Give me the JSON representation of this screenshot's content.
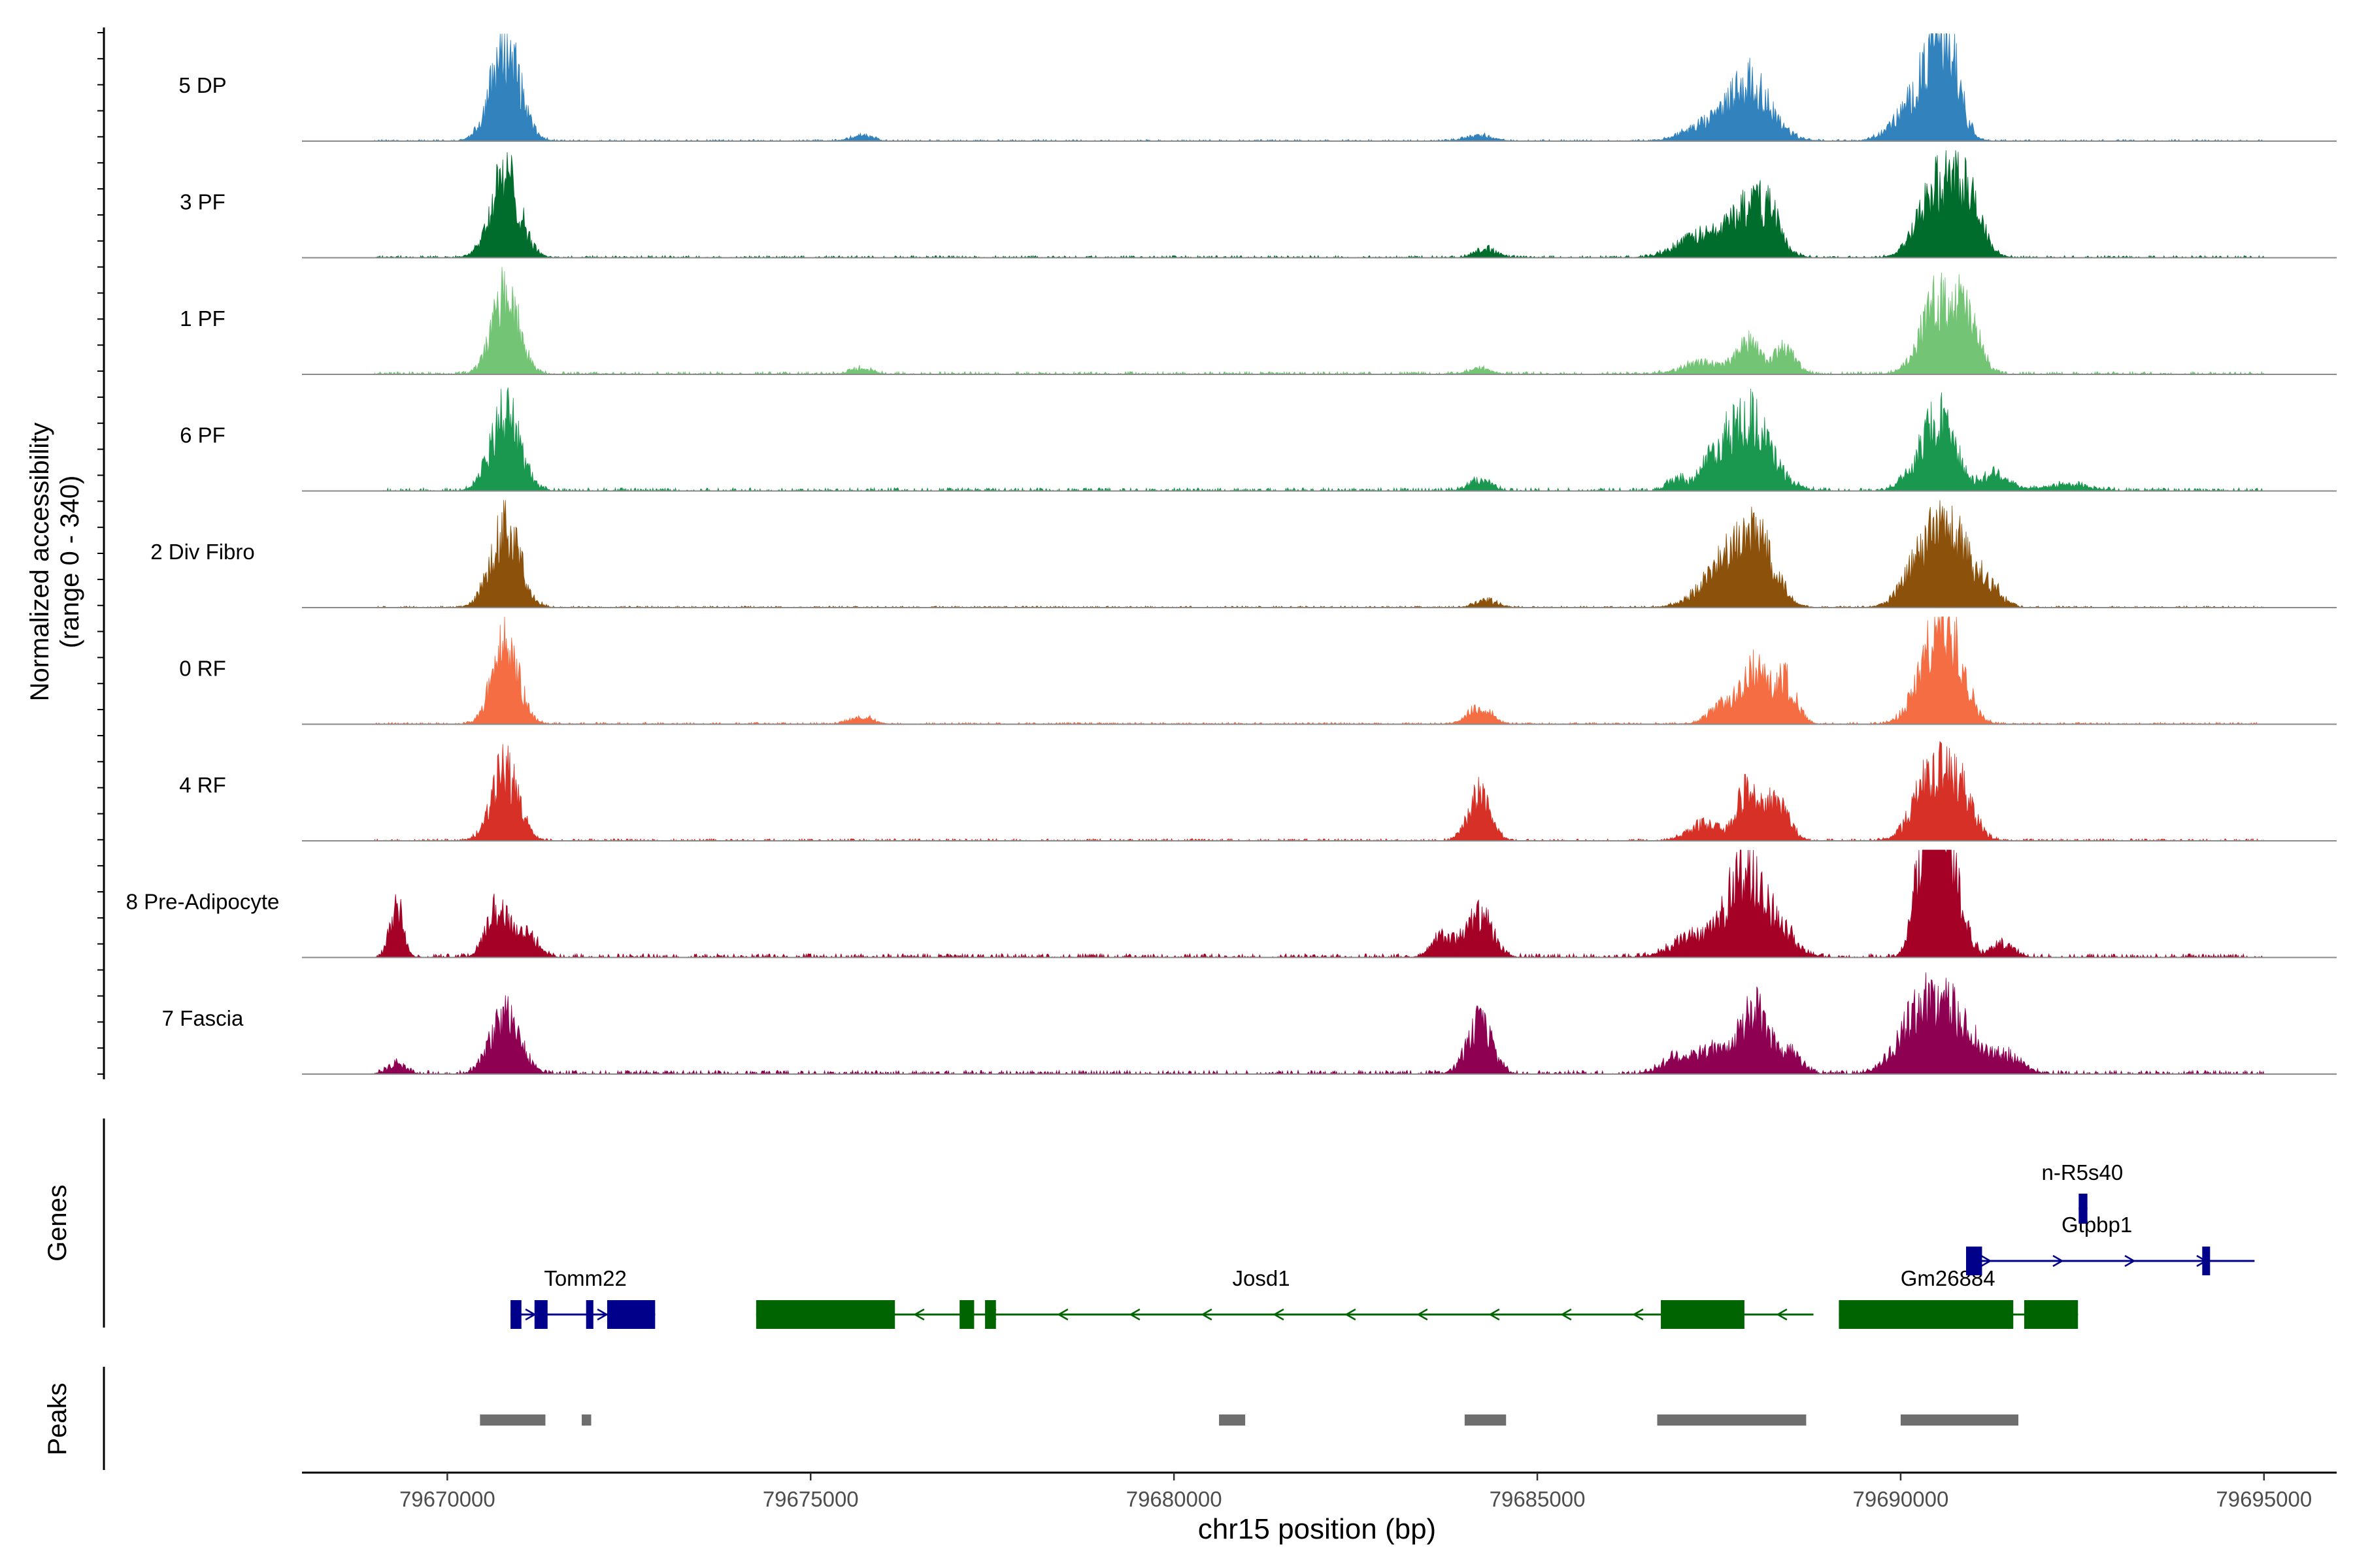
{
  "chart_data": {
    "type": "area",
    "title": "",
    "ylabel_line1": "Normalized accessibility",
    "ylabel_line2": "(range 0 - 340)",
    "xlabel": "chr15 position (bp)",
    "xlim": [
      79668000,
      79696000
    ],
    "ylim": [
      0,
      340
    ],
    "xticks": [
      79670000,
      79675000,
      79680000,
      79685000,
      79690000,
      79695000
    ],
    "xtick_labels": [
      "79670000",
      "79675000",
      "79680000",
      "79685000",
      "79690000",
      "79695000"
    ],
    "series": [
      {
        "name": "5 DP",
        "color": "#3182BD",
        "noise": 6,
        "peaks": [
          [
            79670800,
            200,
            340
          ],
          [
            79675700,
            150,
            20
          ],
          [
            79684200,
            180,
            20
          ],
          [
            79687200,
            250,
            40
          ],
          [
            79687900,
            300,
            210
          ],
          [
            79690300,
            300,
            170
          ],
          [
            79690600,
            180,
            330
          ]
        ]
      },
      {
        "name": "3 PF",
        "color": "#006D2C",
        "noise": 8,
        "peaks": [
          [
            79670800,
            200,
            290
          ],
          [
            79684300,
            150,
            30
          ],
          [
            79687200,
            300,
            70
          ],
          [
            79687900,
            280,
            170
          ],
          [
            79688200,
            150,
            90
          ],
          [
            79690500,
            250,
            240
          ],
          [
            79690900,
            200,
            200
          ]
        ]
      },
      {
        "name": "1 PF",
        "color": "#74C476",
        "noise": 10,
        "peaks": [
          [
            79670800,
            180,
            290
          ],
          [
            79675700,
            150,
            20
          ],
          [
            79684200,
            150,
            20
          ],
          [
            79687900,
            150,
            110
          ],
          [
            79688400,
            150,
            90
          ],
          [
            79687300,
            300,
            40
          ],
          [
            79690500,
            230,
            250
          ],
          [
            79690900,
            180,
            180
          ]
        ]
      },
      {
        "name": "6 PF",
        "color": "#1A9850",
        "noise": 12,
        "peaks": [
          [
            79670800,
            200,
            280
          ],
          [
            79684200,
            150,
            40
          ],
          [
            79686900,
            120,
            40
          ],
          [
            79687400,
            200,
            70
          ],
          [
            79687900,
            300,
            260
          ],
          [
            79690300,
            200,
            120
          ],
          [
            79690600,
            180,
            230
          ],
          [
            79691300,
            200,
            60
          ],
          [
            79692300,
            300,
            20
          ]
        ]
      },
      {
        "name": "2 Div Fibro",
        "color": "#8C510A",
        "noise": 6,
        "peaks": [
          [
            79670800,
            200,
            290
          ],
          [
            79684300,
            150,
            25
          ],
          [
            79687700,
            350,
            190
          ],
          [
            79688100,
            200,
            150
          ],
          [
            79690300,
            250,
            150
          ],
          [
            79690700,
            250,
            240
          ],
          [
            79691200,
            180,
            70
          ]
        ]
      },
      {
        "name": "0 RF",
        "color": "#F46D43",
        "noise": 7,
        "peaks": [
          [
            79670800,
            180,
            290
          ],
          [
            79675700,
            150,
            25
          ],
          [
            79684200,
            160,
            60
          ],
          [
            79687600,
            200,
            80
          ],
          [
            79688000,
            150,
            180
          ],
          [
            79688400,
            150,
            160
          ],
          [
            79690400,
            220,
            200
          ],
          [
            79690700,
            200,
            270
          ]
        ]
      },
      {
        "name": "4 RF",
        "color": "#D73027",
        "noise": 8,
        "peaks": [
          [
            79670800,
            180,
            260
          ],
          [
            79684200,
            150,
            170
          ],
          [
            79687300,
            220,
            60
          ],
          [
            79687900,
            150,
            180
          ],
          [
            79688300,
            150,
            150
          ],
          [
            79690400,
            230,
            220
          ],
          [
            79690800,
            200,
            170
          ]
        ]
      },
      {
        "name": "8 Pre-Adipocyte",
        "color": "#A50026",
        "noise": 14,
        "peaks": [
          [
            79669300,
            90,
            190
          ],
          [
            79670700,
            150,
            180
          ],
          [
            79671100,
            150,
            80
          ],
          [
            79684200,
            180,
            150
          ],
          [
            79683700,
            150,
            70
          ],
          [
            79687800,
            200,
            260
          ],
          [
            79688200,
            250,
            150
          ],
          [
            79687200,
            300,
            80
          ],
          [
            79690400,
            150,
            500
          ],
          [
            79690600,
            200,
            400
          ],
          [
            79691400,
            150,
            50
          ]
        ]
      },
      {
        "name": "7 Fascia",
        "color": "#8E0152",
        "noise": 14,
        "peaks": [
          [
            79669300,
            120,
            40
          ],
          [
            79670800,
            200,
            210
          ],
          [
            79684200,
            170,
            180
          ],
          [
            79686900,
            200,
            50
          ],
          [
            79687400,
            250,
            80
          ],
          [
            79688000,
            200,
            220
          ],
          [
            79688500,
            150,
            70
          ],
          [
            79690300,
            300,
            220
          ],
          [
            79690800,
            300,
            150
          ],
          [
            79691500,
            200,
            50
          ]
        ]
      }
    ],
    "genes_label": "Genes",
    "genes": [
      {
        "name": "Tomm22",
        "strand": "+",
        "color": "#00008B",
        "start": 79670870,
        "end": 79672860,
        "exons": [
          [
            79670870,
            79671020
          ],
          [
            79671200,
            79671380
          ],
          [
            79671910,
            79672010
          ],
          [
            79672200,
            79672860
          ]
        ],
        "label_pos": 79671900
      },
      {
        "name": "Josd1",
        "color": "#006400",
        "strand": "-",
        "start": 79674250,
        "end": 79688800,
        "exons": [
          [
            79674250,
            79676160
          ],
          [
            79677050,
            79677250
          ],
          [
            79677400,
            79677550
          ],
          [
            79686700,
            79687850
          ]
        ],
        "label_pos": 79681200
      },
      {
        "name": "Gm26884",
        "color": "#006400",
        "strand": "",
        "start": 79689150,
        "end": 79692440,
        "exons": [
          [
            79689150,
            79691550
          ],
          [
            79691700,
            79692440
          ]
        ],
        "label_pos": 79690650
      },
      {
        "name": "Gtpbp1",
        "color": "#00008B",
        "strand": "+",
        "start": 79690900,
        "end": 79694870,
        "exons": [
          [
            79690900,
            79691120
          ],
          [
            79694150,
            79694230
          ]
        ],
        "label_pos": 79692700
      },
      {
        "name": "n-R5s40",
        "color": "#00008B",
        "strand": "",
        "start": 79692450,
        "end": 79692570,
        "exons": [
          [
            79692450,
            79692570
          ]
        ],
        "label_pos": 79692500
      }
    ],
    "peaks_label": "Peaks",
    "peak_regions": [
      [
        79670450,
        79671350
      ],
      [
        79671850,
        79671980
      ],
      [
        79680620,
        79680980
      ],
      [
        79684000,
        79684570
      ],
      [
        79686650,
        79688700
      ],
      [
        79690000,
        79691620
      ]
    ]
  }
}
